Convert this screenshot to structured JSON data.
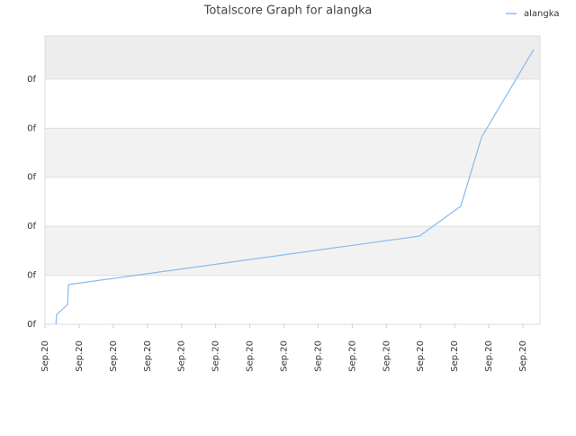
{
  "chart_data": {
    "type": "line",
    "title": "Totalscore Graph for alangka",
    "x": [
      0.32,
      0.34,
      0.66,
      0.69,
      10.97,
      12.18,
      12.79,
      14.32
    ],
    "series": [
      {
        "name": "alangka",
        "color": "#88bbee",
        "values": [
          0,
          0.2,
          0.4,
          0.81,
          1.8,
          2.41,
          3.82,
          5.61
        ]
      }
    ],
    "xlim": [
      0,
      14.5
    ],
    "xticks": [
      {
        "value": 0,
        "label": "Sep.20"
      },
      {
        "value": 1,
        "label": "Sep.20"
      },
      {
        "value": 2,
        "label": "Sep.20"
      },
      {
        "value": 3,
        "label": "Sep.20"
      },
      {
        "value": 4,
        "label": "Sep.20"
      },
      {
        "value": 5,
        "label": "Sep.20"
      },
      {
        "value": 6,
        "label": "Sep.20"
      },
      {
        "value": 7,
        "label": "Sep.20"
      },
      {
        "value": 8,
        "label": "Sep.20"
      },
      {
        "value": 9,
        "label": "Sep.20"
      },
      {
        "value": 10,
        "label": "Sep.20"
      },
      {
        "value": 11,
        "label": "Sep.20"
      },
      {
        "value": 12,
        "label": "Sep.20"
      },
      {
        "value": 13,
        "label": "Sep.20"
      },
      {
        "value": 14,
        "label": "Sep.20"
      }
    ],
    "ylim": [
      0,
      5.88
    ],
    "yticks": [
      {
        "value": 0,
        "label": "0f"
      },
      {
        "value": 1,
        "label": "0f"
      },
      {
        "value": 2,
        "label": "0f"
      },
      {
        "value": 3,
        "label": "0f"
      },
      {
        "value": 4,
        "label": "0f"
      },
      {
        "value": 5,
        "label": "0f"
      }
    ],
    "grid": true,
    "legend": "top-right"
  }
}
